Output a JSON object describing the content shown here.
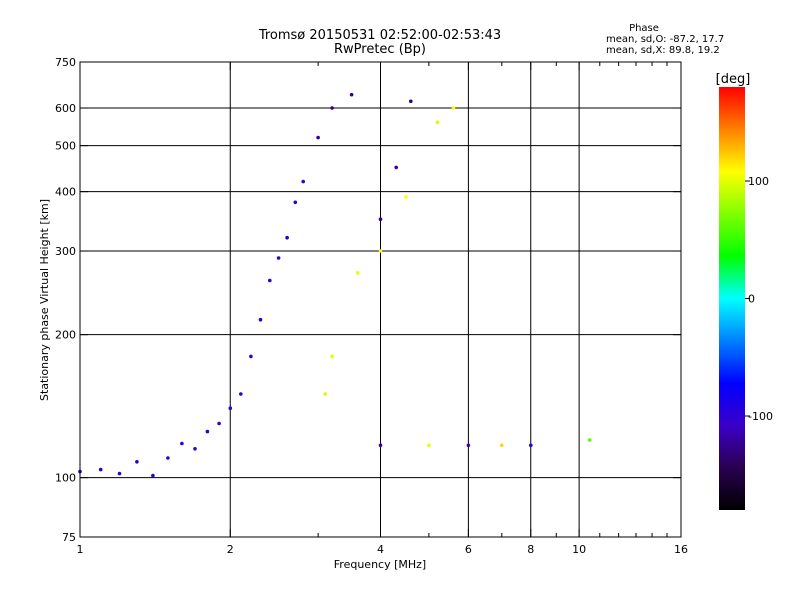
{
  "chart_data": {
    "type": "scatter",
    "title": "Tromsø 20150531 02:52:00-02:53:43",
    "subtitle": "RwPretec (Bp)",
    "phase_stats": {
      "heading": "Phase",
      "line_o": "mean, sd,O: -87.2, 17.7",
      "line_x": "mean, sd,X:  89.8, 19.2"
    },
    "xlabel": "Frequency [MHz]",
    "ylabel": "Stationary phase Virtual Height [km]",
    "x_scale": "log",
    "y_scale": "log",
    "xlim": [
      1,
      16
    ],
    "ylim": [
      75,
      750
    ],
    "x_ticks": [
      1,
      2,
      4,
      6,
      8,
      10,
      16
    ],
    "x_tick_labels": [
      "1",
      "2",
      "4",
      "6",
      "8",
      "10",
      "16"
    ],
    "x_minor_ticks": [
      3,
      5,
      7,
      9,
      11,
      12,
      13,
      14,
      15
    ],
    "y_ticks": [
      75,
      100,
      200,
      300,
      400,
      500,
      600,
      750
    ],
    "y_tick_labels": [
      "75",
      "100",
      "200",
      "300",
      "400",
      "500",
      "600",
      "750"
    ],
    "grid_x": [
      2,
      4,
      6,
      8,
      10
    ],
    "grid_y": [
      100,
      200,
      300,
      400,
      500,
      600
    ],
    "grid": true,
    "colorbar": {
      "label": "[deg]",
      "range": [
        -180,
        180
      ],
      "ticks": [
        100,
        0,
        -100
      ],
      "tick_labels": [
        "100",
        "0",
        "-100"
      ],
      "colors": [
        "#000000",
        "#2a0050",
        "#3a00c8",
        "#0000ff",
        "#0080ff",
        "#00ffff",
        "#00ff00",
        "#80ff00",
        "#ffff00",
        "#ff8000",
        "#ff0000"
      ]
    },
    "series": [
      {
        "points": [
          [
            1.0,
            103,
            -95
          ],
          [
            1.1,
            104,
            -90
          ],
          [
            1.2,
            102,
            -100
          ],
          [
            1.3,
            108,
            -92
          ],
          [
            1.4,
            101,
            -98
          ],
          [
            1.5,
            110,
            -102
          ],
          [
            1.6,
            118,
            -95
          ],
          [
            1.7,
            115,
            -105
          ],
          [
            1.8,
            125,
            -100
          ],
          [
            1.9,
            130,
            -110
          ],
          [
            2.0,
            140,
            -104
          ],
          [
            2.1,
            150,
            -100
          ],
          [
            2.2,
            180,
            -96
          ],
          [
            2.3,
            215,
            -90
          ],
          [
            2.4,
            260,
            -92
          ],
          [
            2.5,
            290,
            -98
          ],
          [
            2.6,
            320,
            -100
          ],
          [
            2.7,
            380,
            -94
          ],
          [
            2.8,
            420,
            -104
          ],
          [
            3.0,
            520,
            -120
          ],
          [
            3.2,
            600,
            -130
          ],
          [
            3.5,
            640,
            -128
          ],
          [
            4.0,
            350,
            -125
          ],
          [
            4.3,
            450,
            -120
          ],
          [
            4.6,
            620,
            -132
          ],
          [
            5.2,
            560,
            95
          ],
          [
            5.6,
            600,
            110
          ],
          [
            3.6,
            270,
            100
          ],
          [
            4.0,
            300,
            105
          ],
          [
            4.5,
            390,
            108
          ],
          [
            3.1,
            150,
            95
          ],
          [
            3.2,
            180,
            100
          ],
          [
            4.0,
            117,
            -115
          ],
          [
            5.0,
            117,
            100
          ],
          [
            6.0,
            117,
            -110
          ],
          [
            7.0,
            117,
            120
          ],
          [
            8.0,
            117,
            -90
          ],
          [
            10.5,
            120,
            60
          ]
        ]
      }
    ]
  }
}
